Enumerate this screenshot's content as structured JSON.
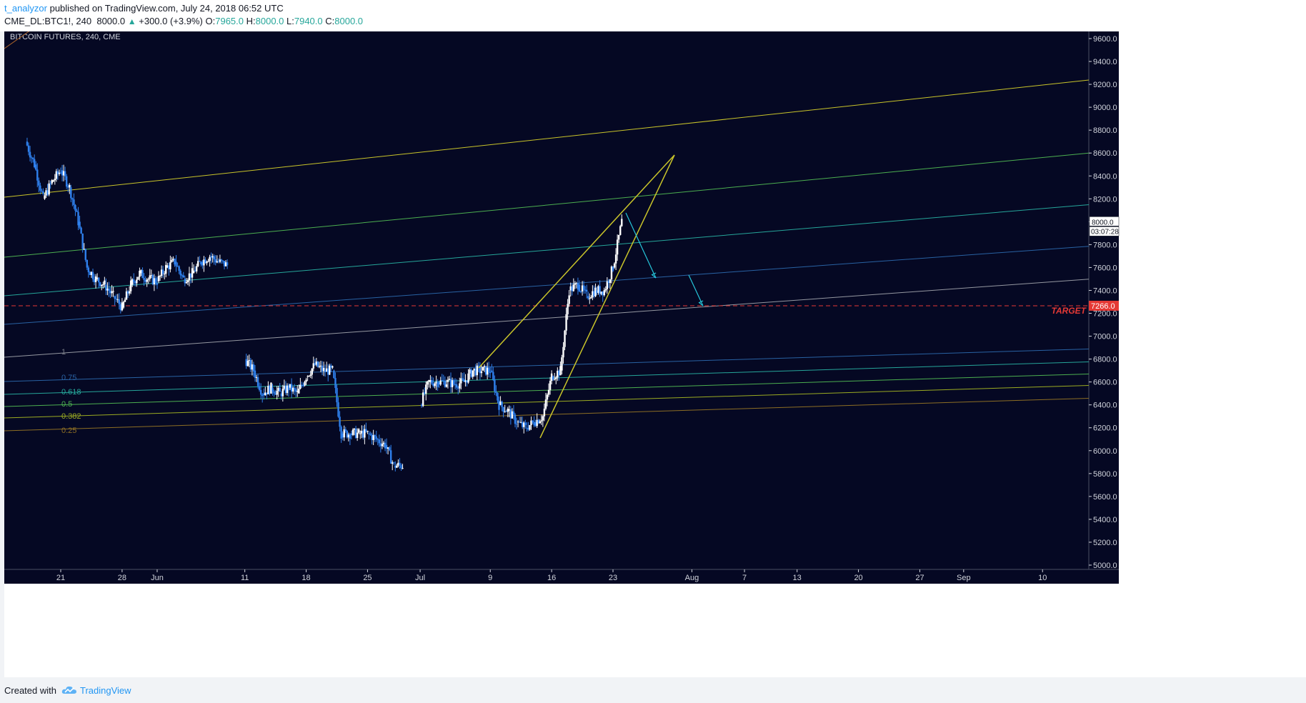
{
  "header": {
    "author": "t_analyzor",
    "published": " published on TradingView.com, July 24, 2018 06:52 UTC",
    "symbol": "CME_DL:BTC1!, 240",
    "last": "8000.0",
    "change": "+300.0 (+3.9%)",
    "o_label": "O:",
    "o_value": "7965.0",
    "h_label": "H:",
    "h_value": "8000.0",
    "l_label": "L:",
    "l_value": "7940.0",
    "c_label": "C:",
    "c_value": "8000.0"
  },
  "footer": {
    "created_with": "Created with",
    "brand": "TradingView"
  },
  "chart_data": {
    "type": "candlestick",
    "title": "BITCOIN FUTURES, 240, CME",
    "ylim": [
      5000,
      9700
    ],
    "y_ticks": [
      5000,
      5200,
      5400,
      5600,
      5800,
      6000,
      6200,
      6400,
      6600,
      6800,
      7000,
      7200,
      7400,
      7600,
      7800,
      8000,
      8200,
      8400,
      8600,
      8800,
      9000,
      9200,
      9400,
      9600
    ],
    "x_ticks": [
      "21",
      "28",
      "Jun",
      "11",
      "18",
      "25",
      "Jul",
      "9",
      "16",
      "23",
      "Aug",
      "7",
      "13",
      "20",
      "27",
      "Sep",
      "10"
    ],
    "x_dates": [
      "2018-05-21",
      "2018-05-28",
      "2018-06-01",
      "2018-06-11",
      "2018-06-18",
      "2018-06-25",
      "2018-07-01",
      "2018-07-09",
      "2018-07-16",
      "2018-07-23",
      "2018-08-01",
      "2018-08-07",
      "2018-08-13",
      "2018-08-20",
      "2018-08-27",
      "2018-09-01",
      "2018-09-10"
    ],
    "price_label": "8000.0",
    "countdown_label": "03:07:28",
    "target_price": 7266.0,
    "target_label": "7266.0",
    "target_text": "TARGET",
    "fib_levels": [
      {
        "label": "1",
        "value": 1,
        "color": "#787b86"
      },
      {
        "label": "0.75",
        "value": 0.75,
        "color": "#2962a3"
      },
      {
        "label": "0.618",
        "value": 0.618,
        "color": "#26a69a"
      },
      {
        "label": "0.5",
        "value": 0.5,
        "color": "#4caf50"
      },
      {
        "label": "0.382",
        "value": 0.382,
        "color": "#9bab22"
      },
      {
        "label": "0.25",
        "value": 0.25,
        "color": "#8d6e24"
      }
    ],
    "price_path": [
      [
        "2018-05-17",
        8700
      ],
      [
        "2018-05-18",
        8500
      ],
      [
        "2018-05-19",
        8200
      ],
      [
        "2018-05-20",
        8350
      ],
      [
        "2018-05-21",
        8450
      ],
      [
        "2018-05-22",
        8300
      ],
      [
        "2018-05-23",
        8000
      ],
      [
        "2018-05-24",
        7600
      ],
      [
        "2018-05-25",
        7500
      ],
      [
        "2018-05-26",
        7450
      ],
      [
        "2018-05-27",
        7350
      ],
      [
        "2018-05-28",
        7250
      ],
      [
        "2018-05-29",
        7450
      ],
      [
        "2018-05-30",
        7550
      ],
      [
        "2018-05-31",
        7500
      ],
      [
        "2018-06-01",
        7480
      ],
      [
        "2018-06-02",
        7600
      ],
      [
        "2018-06-03",
        7650
      ],
      [
        "2018-06-04",
        7500
      ],
      [
        "2018-06-05",
        7550
      ],
      [
        "2018-06-06",
        7650
      ],
      [
        "2018-06-07",
        7700
      ],
      [
        "2018-06-08",
        7650
      ],
      [
        "2018-06-09",
        7620
      ],
      [
        "2018-06-11",
        6800
      ],
      [
        "2018-06-12",
        6700
      ],
      [
        "2018-06-13",
        6500
      ],
      [
        "2018-06-14",
        6550
      ],
      [
        "2018-06-15",
        6500
      ],
      [
        "2018-06-16",
        6550
      ],
      [
        "2018-06-17",
        6500
      ],
      [
        "2018-06-18",
        6650
      ],
      [
        "2018-06-19",
        6750
      ],
      [
        "2018-06-20",
        6700
      ],
      [
        "2018-06-21",
        6700
      ],
      [
        "2018-06-22",
        6150
      ],
      [
        "2018-06-23",
        6150
      ],
      [
        "2018-06-24",
        6150
      ],
      [
        "2018-06-25",
        6150
      ],
      [
        "2018-06-26",
        6100
      ],
      [
        "2018-06-27",
        6050
      ],
      [
        "2018-06-28",
        5870
      ],
      [
        "2018-06-29",
        5870
      ],
      [
        "2018-07-01",
        6400
      ],
      [
        "2018-07-02",
        6600
      ],
      [
        "2018-07-03",
        6600
      ],
      [
        "2018-07-04",
        6600
      ],
      [
        "2018-07-05",
        6580
      ],
      [
        "2018-07-06",
        6600
      ],
      [
        "2018-07-07",
        6700
      ],
      [
        "2018-07-08",
        6700
      ],
      [
        "2018-07-09",
        6700
      ],
      [
        "2018-07-10",
        6400
      ],
      [
        "2018-07-11",
        6350
      ],
      [
        "2018-07-12",
        6250
      ],
      [
        "2018-07-13",
        6200
      ],
      [
        "2018-07-14",
        6250
      ],
      [
        "2018-07-15",
        6300
      ],
      [
        "2018-07-16",
        6650
      ],
      [
        "2018-07-17",
        6700
      ],
      [
        "2018-07-18",
        7400
      ],
      [
        "2018-07-19",
        7450
      ],
      [
        "2018-07-20",
        7350
      ],
      [
        "2018-07-21",
        7400
      ],
      [
        "2018-07-22",
        7400
      ],
      [
        "2018-07-23",
        7600
      ],
      [
        "2018-07-24",
        8000
      ]
    ]
  },
  "colors": {
    "background": "#050823",
    "candle_up": "#ffffff",
    "candle_down": "#2f80ed",
    "target": "#e53935",
    "wedge": "#c9c42a",
    "arrow": "#26c6da"
  }
}
